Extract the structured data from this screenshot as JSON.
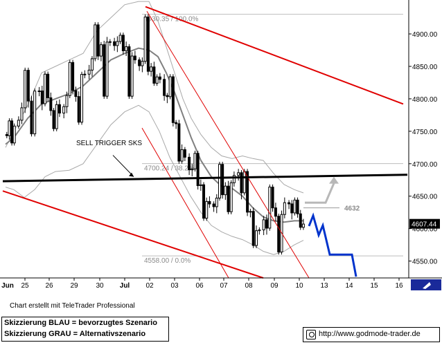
{
  "chart_data": {
    "type": "candlestick",
    "y_ticks": [
      4550,
      4600,
      4650,
      4700,
      4750,
      4800,
      4850,
      4900
    ],
    "y_tick_labels": [
      "4550.00",
      "4600.00",
      "4650.00",
      "4700.00",
      "4750.00",
      "4800.00",
      "4850.00",
      "4900.00"
    ],
    "ylim": [
      4524,
      4948
    ],
    "x_labels": [
      "Jun",
      "25",
      "26",
      "29",
      "30",
      "Jul",
      "02",
      "03",
      "06",
      "07",
      "08",
      "09",
      "10",
      "13",
      "14",
      "15",
      "16"
    ],
    "last_price_label": "4607.44",
    "last_price": 4607.44,
    "fib_levels": [
      {
        "label": "4930.35 / 100.0%",
        "value": 4930.35
      },
      {
        "label": "4700.24 / 38.2%",
        "value": 4700.24
      },
      {
        "label": "4558.00 / 0.0%",
        "value": 4558.0
      }
    ],
    "annotations": {
      "sell_trigger": "SELL TRIGGER SKS",
      "target_label": "4632"
    },
    "colors": {
      "trend_channel": "#e00000",
      "scenario_blue": "#0033cc",
      "scenario_gray": "#b8b8b8",
      "price": "#000000",
      "moving_average": "#808080",
      "bollinger": "#a8a8a8",
      "fib_line": "#bdbdbd"
    },
    "sessions": [
      {
        "label": "Jun",
        "o": 4745,
        "h": 4770,
        "l": 4728,
        "c": 4758
      },
      {
        "label": "25",
        "o": 4758,
        "h": 4848,
        "l": 4742,
        "c": 4812
      },
      {
        "label": "26",
        "o": 4812,
        "h": 4842,
        "l": 4750,
        "c": 4778
      },
      {
        "label": "29",
        "o": 4778,
        "h": 4860,
        "l": 4760,
        "c": 4838
      },
      {
        "label": "30",
        "o": 4838,
        "h": 4918,
        "l": 4800,
        "c": 4888
      },
      {
        "label": "Jul",
        "o": 4888,
        "h": 4902,
        "l": 4800,
        "c": 4860
      },
      {
        "label": "02",
        "o": 4860,
        "h": 4930,
        "l": 4820,
        "c": 4830
      },
      {
        "label": "03",
        "o": 4830,
        "h": 4838,
        "l": 4700,
        "c": 4710
      },
      {
        "label": "06",
        "o": 4710,
        "h": 4720,
        "l": 4612,
        "c": 4638
      },
      {
        "label": "07",
        "o": 4638,
        "h": 4703,
        "l": 4622,
        "c": 4682
      },
      {
        "label": "08",
        "o": 4682,
        "h": 4692,
        "l": 4570,
        "c": 4598
      },
      {
        "label": "09",
        "o": 4598,
        "h": 4668,
        "l": 4560,
        "c": 4640
      },
      {
        "label": "10",
        "o": 4640,
        "h": 4648,
        "l": 4598,
        "c": 4607
      }
    ]
  },
  "credit": "Chart erstellt mit TeleTrader Professional",
  "legend": {
    "blue": "Skizzierung BLAU = bevorzugtes Szenario",
    "gray": "Skizzierung GRAU = Alternativszenario"
  },
  "url": "http://www.godmode-trader.de"
}
